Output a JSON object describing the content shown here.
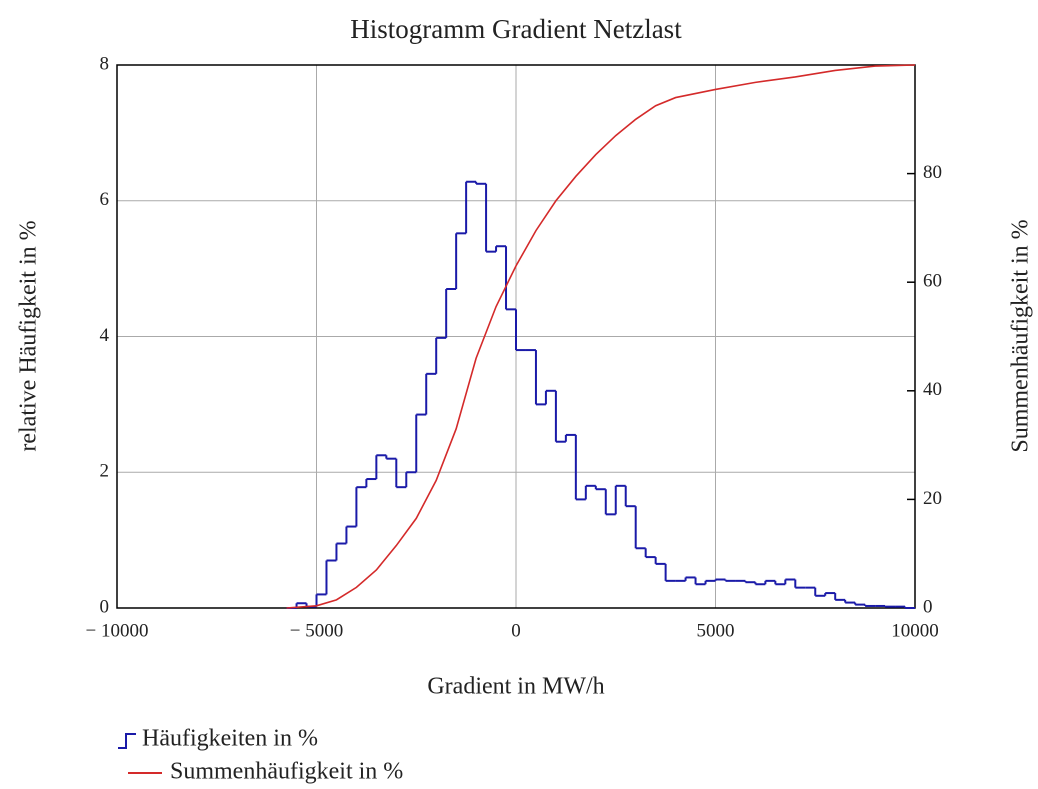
{
  "chart_data": {
    "type": "histogram",
    "title": "Histogramm Gradient Netzlast",
    "x_label": "Gradient in MW/h",
    "y_label": "relative Häufigkeit in %",
    "y2_label": "Summenhäufigkeit in %",
    "xlim": [
      -10000,
      10000
    ],
    "xticks": [
      {
        "value": -10000,
        "label": "− 10000"
      },
      {
        "value": -5000,
        "label": "− 5000"
      },
      0,
      5000,
      10000
    ],
    "ylim": [
      0,
      8
    ],
    "yticks": [
      0,
      2,
      4,
      6,
      8
    ],
    "y2lim": [
      0,
      100
    ],
    "y2ticks": [
      0,
      20,
      40,
      60,
      80
    ],
    "grid": true,
    "legend": "bottom left",
    "bins": [
      -5750,
      -5500,
      -5250,
      -5000,
      -4750,
      -4500,
      -4250,
      -4000,
      -3750,
      -3500,
      -3250,
      -3000,
      -2750,
      -2500,
      -2250,
      -2000,
      -1750,
      -1500,
      -1250,
      -1000,
      -750,
      -500,
      -250,
      0,
      250,
      500,
      750,
      1000,
      1250,
      1500,
      1750,
      2000,
      2250,
      2500,
      2750,
      3000,
      3250,
      3500,
      3750,
      4000,
      4250,
      4500,
      4750,
      5000,
      5250,
      5500,
      5750,
      6000,
      6250,
      6500,
      6750,
      7000,
      7250,
      7500,
      7750,
      8000,
      8250,
      8500,
      8750,
      9000,
      9250,
      9500,
      9750,
      10000
    ],
    "series": [
      {
        "name": "Häufigkeiten in %",
        "color": "#1a1aa8",
        "values": [
          0,
          0.07,
          0.02,
          0.2,
          0.7,
          0.95,
          1.2,
          1.78,
          1.9,
          2.25,
          2.2,
          1.78,
          2.0,
          2.85,
          3.45,
          3.98,
          4.7,
          5.52,
          6.28,
          6.25,
          5.25,
          5.33,
          4.4,
          3.8,
          3.8,
          3.0,
          3.2,
          2.45,
          2.55,
          1.6,
          1.8,
          1.75,
          1.38,
          1.8,
          1.5,
          0.88,
          0.75,
          0.65,
          0.4,
          0.4,
          0.45,
          0.35,
          0.4,
          0.42,
          0.4,
          0.4,
          0.38,
          0.35,
          0.4,
          0.35,
          0.42,
          0.3,
          0.3,
          0.18,
          0.22,
          0.12,
          0.08,
          0.05,
          0.03,
          0.03,
          0.02,
          0.02,
          0
        ]
      },
      {
        "name": "Summenhäufigkeit in %",
        "color": "#d42a2a",
        "axis": "y2",
        "type": "line",
        "x": [
          -5750,
          -5000,
          -4500,
          -4000,
          -3500,
          -3000,
          -2500,
          -2000,
          -1500,
          -1000,
          -500,
          0,
          500,
          1000,
          1500,
          2000,
          2500,
          3000,
          3500,
          4000,
          5000,
          6000,
          7000,
          8000,
          9000,
          10000
        ],
        "values": [
          0,
          0.4,
          1.5,
          3.8,
          7,
          11.5,
          16.5,
          23.5,
          33,
          46,
          55.5,
          63,
          69.5,
          75,
          79.5,
          83.5,
          87,
          90,
          92.5,
          94,
          95.5,
          96.8,
          97.8,
          99,
          99.8,
          100
        ]
      }
    ]
  }
}
